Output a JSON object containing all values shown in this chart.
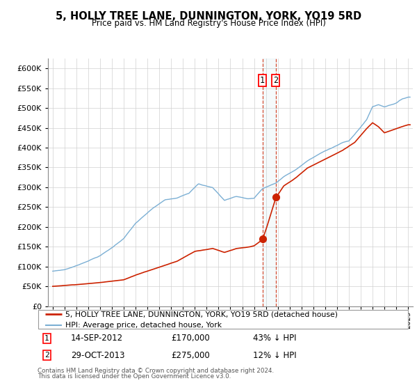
{
  "title": "5, HOLLY TREE LANE, DUNNINGTON, YORK, YO19 5RD",
  "subtitle": "Price paid vs. HM Land Registry's House Price Index (HPI)",
  "hpi_color": "#7bafd4",
  "price_color": "#cc2200",
  "transaction1_date": "14-SEP-2012",
  "transaction1_price": 170000,
  "transaction1_label": "43% ↓ HPI",
  "transaction2_date": "29-OCT-2013",
  "transaction2_price": 275000,
  "transaction2_label": "12% ↓ HPI",
  "ylim_max": 625000,
  "yticks": [
    0,
    50000,
    100000,
    150000,
    200000,
    250000,
    300000,
    350000,
    400000,
    450000,
    500000,
    550000,
    600000
  ],
  "xlim_min": 1994.6,
  "xlim_max": 2025.4,
  "footer1": "Contains HM Land Registry data © Crown copyright and database right 2024.",
  "footer2": "This data is licensed under the Open Government Licence v3.0.",
  "legend_property": "5, HOLLY TREE LANE, DUNNINGTON, YORK, YO19 5RD (detached house)",
  "legend_hpi": "HPI: Average price, detached house, York",
  "t1_x": 2012.706,
  "t2_x": 2013.831,
  "hpi_anchors_t": [
    1995.0,
    1996.0,
    1997.0,
    1998.0,
    1999.0,
    2000.0,
    2001.0,
    2002.0,
    2003.5,
    2004.5,
    2005.5,
    2006.5,
    2007.3,
    2008.5,
    2009.5,
    2010.5,
    2011.5,
    2012.0,
    2012.706,
    2013.0,
    2013.831,
    2014.5,
    2015.5,
    2016.5,
    2017.5,
    2018.5,
    2019.5,
    2020.0,
    2020.5,
    2021.5,
    2022.0,
    2022.5,
    2023.0,
    2023.5,
    2024.0,
    2024.5,
    2025.0
  ],
  "hpi_anchors_v": [
    88000,
    92000,
    102000,
    115000,
    128000,
    148000,
    172000,
    210000,
    248000,
    268000,
    272000,
    285000,
    310000,
    300000,
    268000,
    278000,
    272000,
    274000,
    298000,
    302000,
    312000,
    328000,
    345000,
    368000,
    385000,
    400000,
    415000,
    418000,
    435000,
    472000,
    505000,
    510000,
    505000,
    510000,
    515000,
    525000,
    530000
  ],
  "price_anchors_t": [
    1995.0,
    1997.0,
    1999.0,
    2001.0,
    2002.5,
    2004.0,
    2005.5,
    2007.0,
    2008.5,
    2009.5,
    2010.5,
    2011.5,
    2012.0,
    2012.706,
    2013.0,
    2013.831,
    2014.5,
    2015.5,
    2016.5,
    2017.5,
    2018.5,
    2019.5,
    2020.5,
    2021.5,
    2022.0,
    2022.5,
    2023.0,
    2023.5,
    2024.0,
    2024.5,
    2025.0
  ],
  "price_anchors_v": [
    50000,
    55000,
    60000,
    68000,
    85000,
    100000,
    115000,
    140000,
    148000,
    138000,
    148000,
    152000,
    155000,
    170000,
    195000,
    275000,
    305000,
    325000,
    350000,
    365000,
    380000,
    395000,
    415000,
    450000,
    465000,
    455000,
    440000,
    445000,
    450000,
    455000,
    460000
  ]
}
